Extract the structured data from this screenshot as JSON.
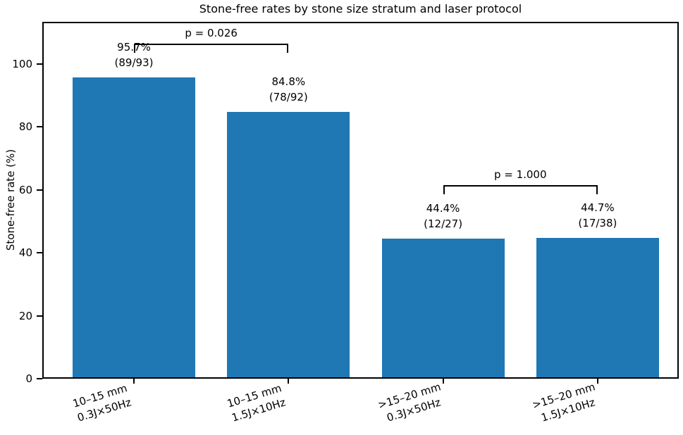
{
  "chart_data": {
    "type": "bar",
    "title": "Stone-free rates by stone size stratum and laser protocol",
    "xlabel": "",
    "ylabel": "Stone-free rate (%)",
    "ylim": [
      0,
      113.4
    ],
    "yticks": [
      0,
      20,
      40,
      60,
      80,
      100
    ],
    "grid": false,
    "legend": null,
    "bar_color": "#1f77b4",
    "axis_color": "#000000",
    "categories": [
      "10–15 mm\n0.3J×50Hz",
      "10–15 mm\n1.5J×10Hz",
      ">15–20 mm\n0.3J×50Hz",
      ">15–20 mm\n1.5J×10Hz"
    ],
    "values": [
      95.7,
      84.8,
      44.4,
      44.7
    ],
    "bar_labels": [
      "95.7%\n(89/93)",
      "84.8%\n(78/92)",
      "44.4%\n(12/27)",
      "44.7%\n(17/38)"
    ],
    "significance_brackets": [
      {
        "from": 0,
        "to": 1,
        "label": "p = 0.026",
        "y_percent": 106.5
      },
      {
        "from": 2,
        "to": 3,
        "label": "p = 1.000",
        "y_percent": 61.5
      }
    ]
  }
}
